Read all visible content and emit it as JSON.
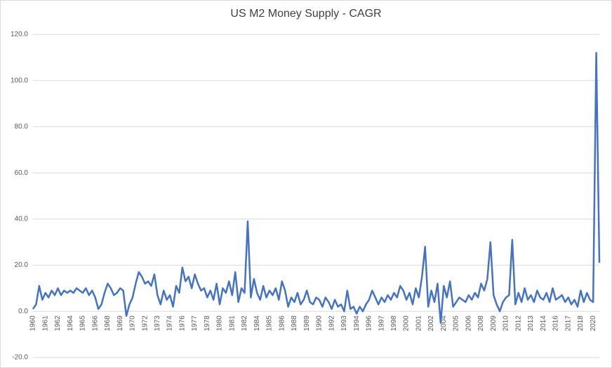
{
  "chart_data": {
    "type": "line",
    "title": "US M2 Money Supply - CAGR",
    "categories": [
      "1960",
      null,
      null,
      null,
      "1961",
      null,
      null,
      null,
      "1962",
      null,
      null,
      null,
      "1964",
      null,
      null,
      null,
      "1965",
      null,
      null,
      null,
      "1966",
      null,
      null,
      null,
      "1968",
      null,
      null,
      null,
      "1969",
      null,
      null,
      null,
      "1970",
      null,
      null,
      null,
      "1972",
      null,
      null,
      null,
      "1973",
      null,
      null,
      null,
      "1974",
      null,
      null,
      null,
      "1976",
      null,
      null,
      null,
      "1977",
      null,
      null,
      null,
      "1978",
      null,
      null,
      null,
      "1980",
      null,
      null,
      null,
      "1981",
      null,
      null,
      null,
      "1982",
      null,
      null,
      null,
      "1984",
      null,
      null,
      null,
      "1985",
      null,
      null,
      null,
      "1986",
      null,
      null,
      null,
      "1988",
      null,
      null,
      null,
      "1989",
      null,
      null,
      null,
      "1990",
      null,
      null,
      null,
      "1992",
      null,
      null,
      null,
      "1993",
      null,
      null,
      null,
      "1994",
      null,
      null,
      null,
      "1996",
      null,
      null,
      null,
      "1997",
      null,
      null,
      null,
      "1998",
      null,
      null,
      null,
      "2000",
      null,
      null,
      null,
      "2001",
      null,
      null,
      null,
      "2002",
      null,
      null,
      null,
      "2004",
      null,
      null,
      null,
      "2005",
      null,
      null,
      null,
      "2006",
      null,
      null,
      null,
      "2008",
      null,
      null,
      null,
      "2009",
      null,
      null,
      null,
      "2010",
      null,
      null,
      null,
      "2012",
      null,
      null,
      null,
      "2013",
      null,
      null,
      null,
      "2014",
      null,
      null,
      null,
      "2016",
      null,
      null,
      null,
      "2017",
      null,
      null,
      null,
      "2018",
      null,
      null,
      null,
      "2020",
      null,
      null
    ],
    "values": [
      1,
      3,
      11,
      5,
      8,
      6,
      9,
      7,
      10,
      7,
      9,
      8,
      9,
      8,
      10,
      9,
      8,
      10,
      7,
      9,
      6,
      1,
      3,
      8,
      12,
      10,
      7,
      8,
      10,
      9,
      -2,
      3,
      6,
      12,
      17,
      15,
      12,
      13,
      11,
      16,
      7,
      3,
      9,
      5,
      7,
      2,
      11,
      8,
      19,
      13,
      15,
      10,
      16,
      12,
      9,
      10,
      6,
      9,
      5,
      12,
      3,
      10,
      8,
      13,
      7,
      17,
      4,
      10,
      8,
      39,
      6,
      14,
      8,
      5,
      11,
      6,
      9,
      7,
      10,
      5,
      13,
      9,
      2,
      6,
      4,
      8,
      3,
      5,
      9,
      4,
      3,
      6,
      5,
      2,
      6,
      4,
      1,
      5,
      2,
      3,
      0,
      9,
      1,
      2,
      -1,
      2,
      0,
      3,
      5,
      9,
      6,
      3,
      6,
      4,
      7,
      5,
      8,
      6,
      11,
      9,
      5,
      8,
      3,
      10,
      6,
      15,
      28,
      2,
      9,
      4,
      12,
      -5,
      11,
      6,
      13,
      2,
      4,
      6,
      5,
      4,
      7,
      5,
      8,
      6,
      12,
      9,
      14,
      30,
      7,
      3,
      0,
      4,
      6,
      7,
      31,
      3,
      8,
      4,
      10,
      5,
      7,
      4,
      9,
      6,
      5,
      8,
      4,
      10,
      5,
      6,
      7,
      4,
      6,
      3,
      5,
      2,
      9,
      4,
      8,
      5,
      4,
      112,
      21
    ],
    "color": "#4472c4",
    "ylim": [
      -20,
      120
    ],
    "yticks": [
      {
        "value": -20,
        "label": "-20.0"
      },
      {
        "value": 0,
        "label": "0.0"
      },
      {
        "value": 20,
        "label": "20.0"
      },
      {
        "value": 40,
        "label": "40.0"
      },
      {
        "value": 60,
        "label": "60.0"
      },
      {
        "value": 80,
        "label": "80.0"
      },
      {
        "value": 100,
        "label": "100.0"
      },
      {
        "value": 120,
        "label": "120.0"
      }
    ],
    "grid": true
  }
}
